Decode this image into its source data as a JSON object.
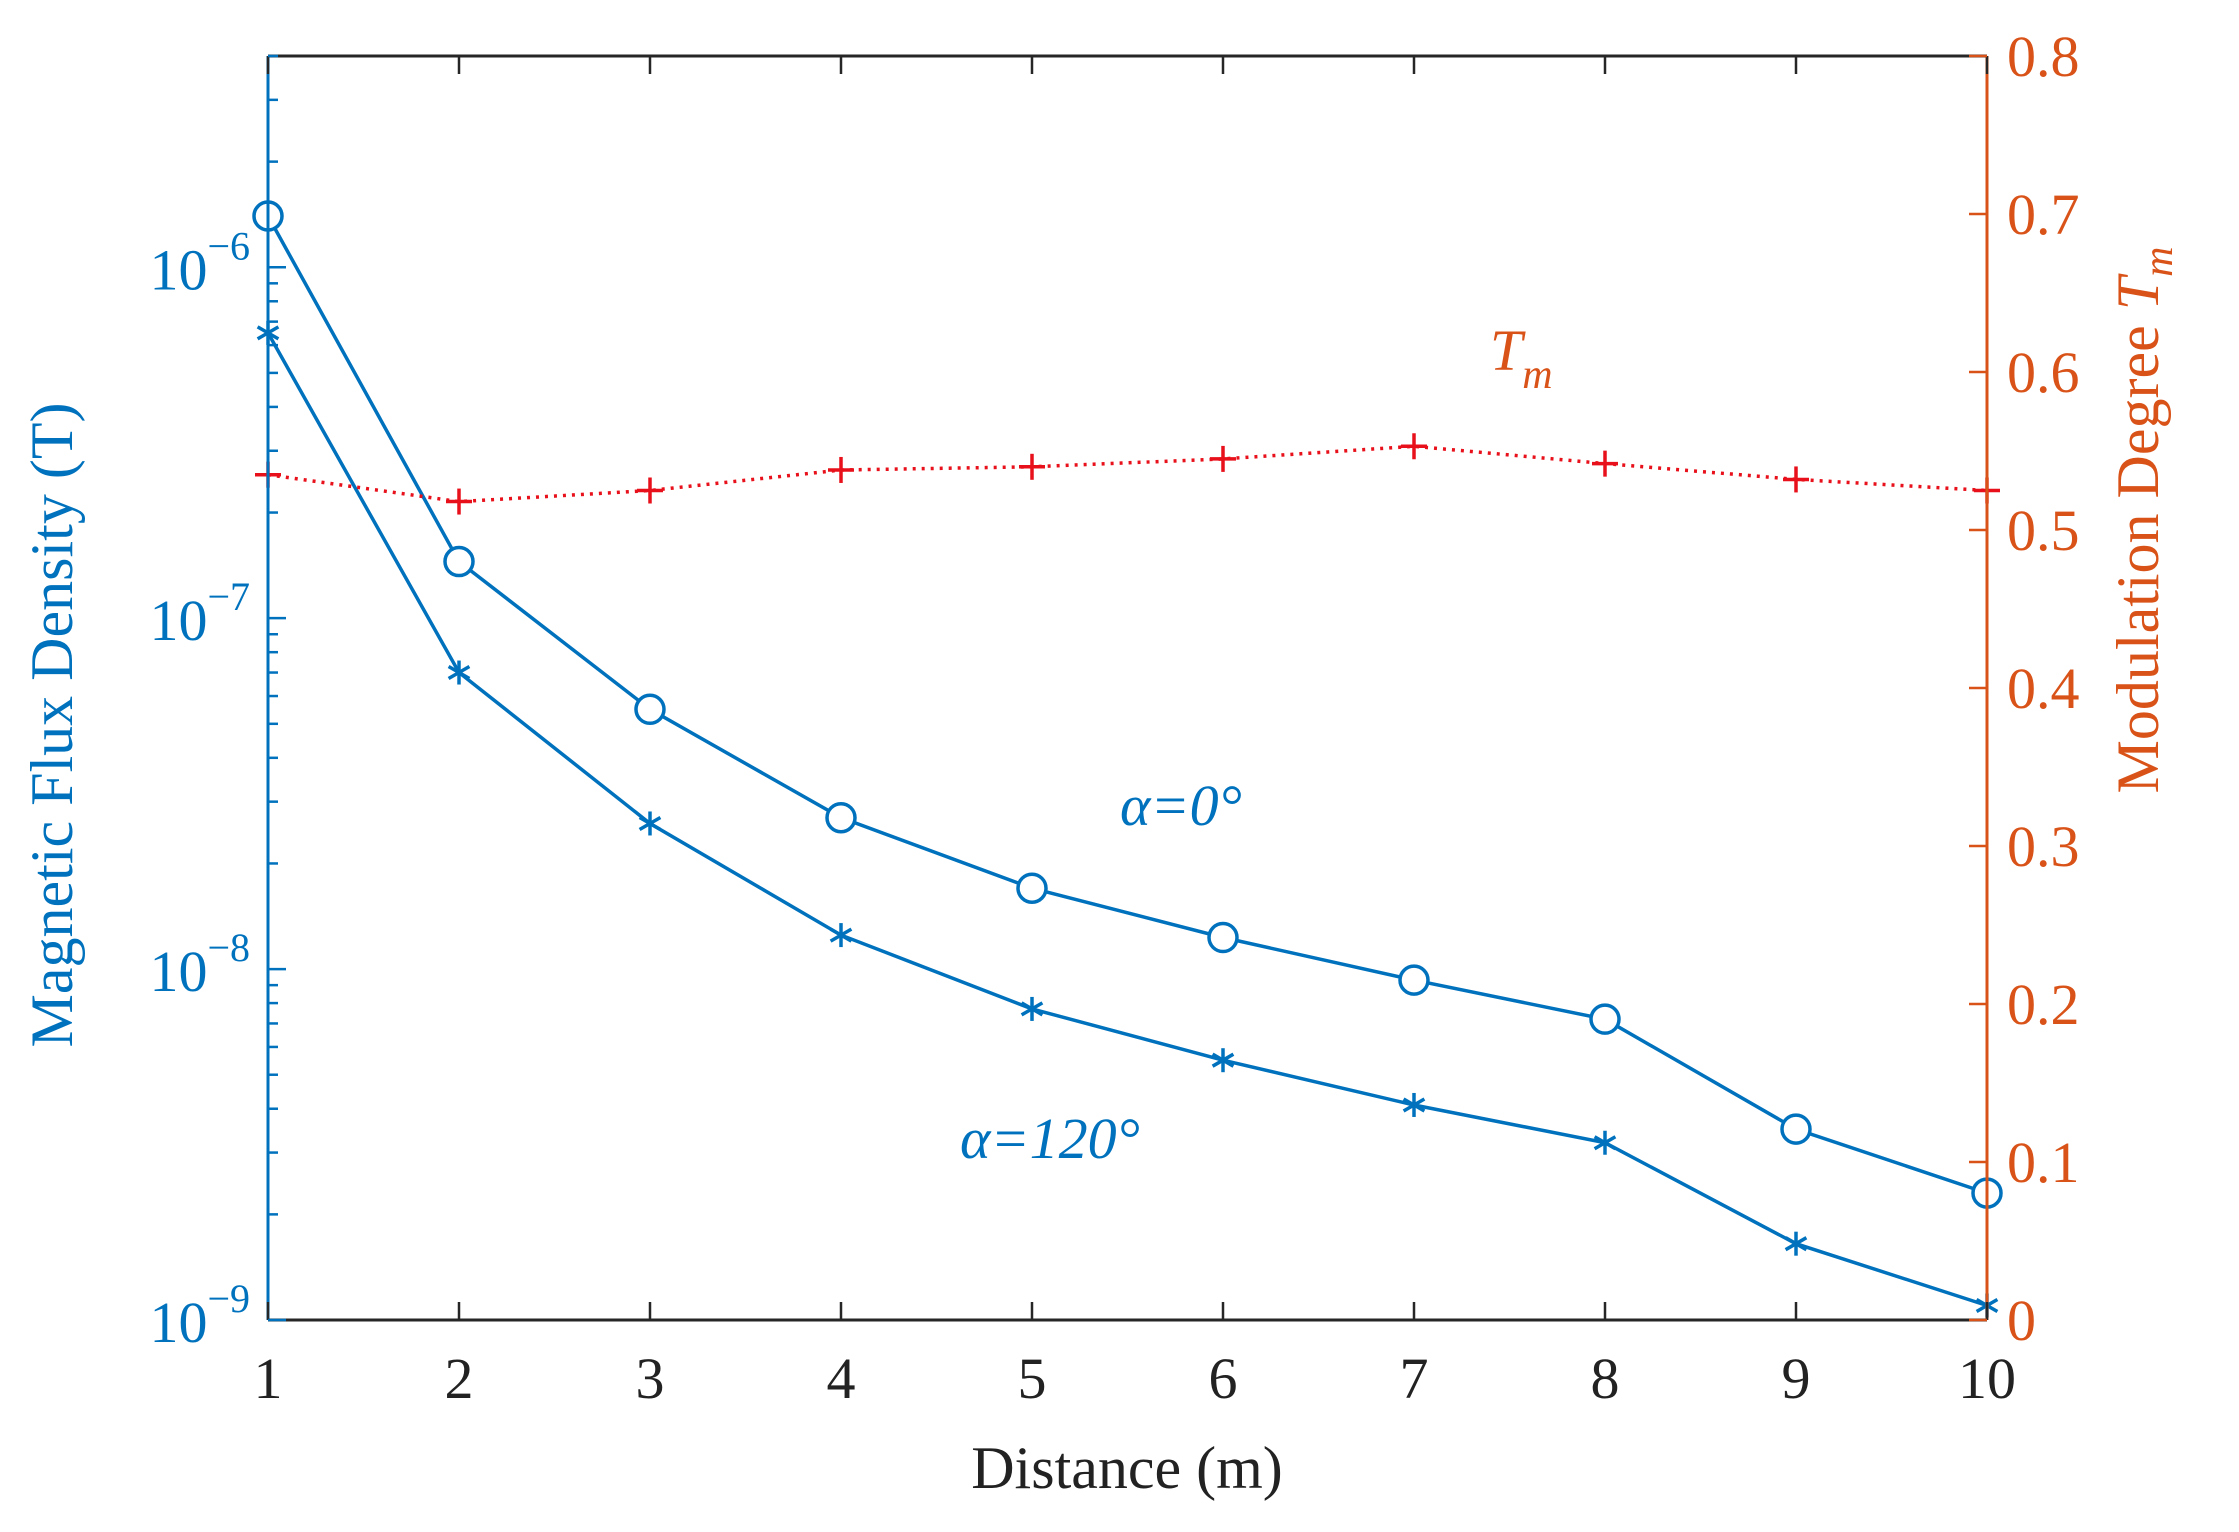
{
  "chart_data": {
    "type": "line",
    "xlabel": "Distance (m)",
    "x": [
      1,
      2,
      3,
      4,
      5,
      6,
      7,
      8,
      9,
      10
    ],
    "xlim": [
      1,
      10
    ],
    "y_left": {
      "label": "Magnetic Flux Density (T)",
      "scale": "log",
      "lim": [
        1e-09,
        4e-06
      ],
      "ticks": [
        {
          "value": 1e-06,
          "base": "10",
          "exp": "−6"
        },
        {
          "value": 1e-07,
          "base": "10",
          "exp": "−7"
        },
        {
          "value": 1e-08,
          "base": "10",
          "exp": "−8"
        },
        {
          "value": 1e-09,
          "base": "10",
          "exp": "−9"
        }
      ],
      "color": "#0072BD"
    },
    "y_right": {
      "label": "Modulation Degree ",
      "label_symbol": "T",
      "label_sub": "m",
      "scale": "linear",
      "lim": [
        0,
        0.8
      ],
      "ticks": [
        "0",
        "0.1",
        "0.2",
        "0.3",
        "0.4",
        "0.5",
        "0.6",
        "0.7",
        "0.8"
      ],
      "color": "#D95319"
    },
    "series": [
      {
        "name": "α=0°",
        "axis": "left",
        "marker": "circle",
        "line": "solid",
        "color": "#0072BD",
        "values": [
          1.4e-06,
          1.45e-07,
          5.5e-08,
          2.7e-08,
          1.7e-08,
          1.23e-08,
          9.3e-09,
          7.2e-09,
          3.5e-09,
          2.3e-09
        ]
      },
      {
        "name": "α=120°",
        "axis": "left",
        "marker": "asterisk",
        "line": "solid",
        "color": "#0072BD",
        "values": [
          6.5e-07,
          7e-08,
          2.6e-08,
          1.25e-08,
          7.7e-09,
          5.5e-09,
          4.1e-09,
          3.2e-09,
          1.65e-09,
          1.1e-09
        ]
      },
      {
        "name": "Tm",
        "axis": "right",
        "marker": "plus",
        "line": "dotted",
        "color": "#E8101A",
        "values": [
          0.535,
          0.518,
          0.525,
          0.538,
          0.54,
          0.545,
          0.553,
          0.542,
          0.532,
          0.525
        ]
      }
    ],
    "annotations": [
      {
        "text": "α=0°",
        "series": "α=0°"
      },
      {
        "text": "α=120°",
        "series": "α=120°"
      },
      {
        "symbol": "T",
        "sub": "m",
        "series": "Tm"
      }
    ],
    "grid": false
  }
}
